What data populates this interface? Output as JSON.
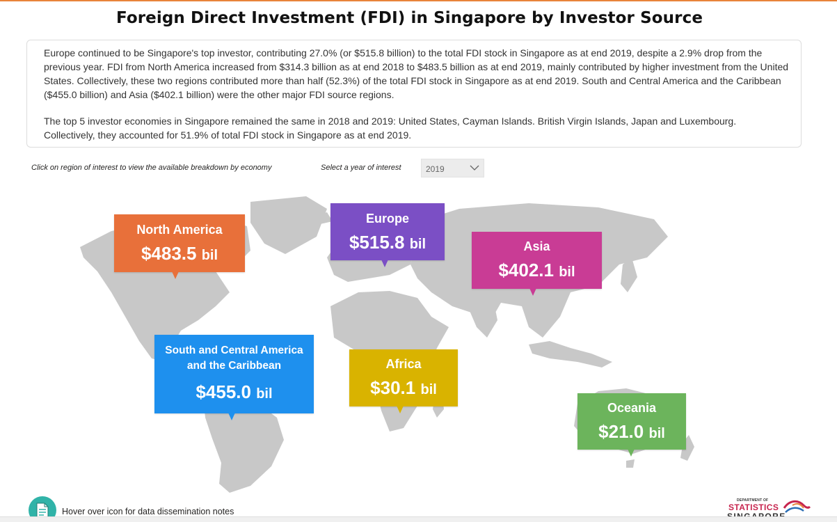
{
  "page": {
    "title": "Foreign Direct Investment (FDI) in Singapore by Investor Source"
  },
  "summary": {
    "paragraph1": "Europe continued to be Singapore's top investor, contributing 27.0% (or $515.8 billion) to the total FDI stock in Singapore as at end 2019, despite a 2.9% drop from the previous year. FDI from North America increased from $314.3 billion as at end 2018 to $483.5 billion as at end 2019, mainly contributed by higher investment from the United States. Collectively, these two regions contributed more than half (52.3%) of the total FDI stock in Singapore as at end 2019. South and Central America and the Caribbean ($455.0 billion) and Asia ($402.1 billion) were the other major FDI source regions.",
    "paragraph2": "The top 5 investor economies in Singapore remained the same in 2018 and 2019: United States, Cayman Islands. British Virgin Islands, Japan and Luxembourg. Collectively, they accounted for 51.9% of total FDI stock in Singapore as at end 2019."
  },
  "controls": {
    "region_hint": "Click on region of interest to view the available breakdown by economy",
    "year_label": "Select a year of interest",
    "year_selected": "2019"
  },
  "regions": [
    {
      "name": "North America",
      "amount": "$483.5",
      "unit": "bil",
      "color": "#e8703a"
    },
    {
      "name": "Europe",
      "amount": "$515.8",
      "unit": "bil",
      "color": "#7b4fc5"
    },
    {
      "name": "Asia",
      "amount": "$402.1",
      "unit": "bil",
      "color": "#c93c95"
    },
    {
      "name": "South and Central America and the Caribbean",
      "amount": "$455.0",
      "unit": "bil",
      "color": "#1e90ee"
    },
    {
      "name": "Africa",
      "amount": "$30.1",
      "unit": "bil",
      "color": "#d9b300"
    },
    {
      "name": "Oceania",
      "amount": "$21.0",
      "unit": "bil",
      "color": "#6cb45c"
    }
  ],
  "footer": {
    "notes_text": "Hover over icon for data dissemination notes",
    "logo": {
      "dept": "DEPARTMENT OF",
      "statistics": "STATISTICS",
      "singapore": "SINGAPORE"
    }
  },
  "colors": {
    "map_land": "#c8c8c8",
    "accent_line": "#e8833a",
    "notes_icon": "#30b3a8"
  }
}
